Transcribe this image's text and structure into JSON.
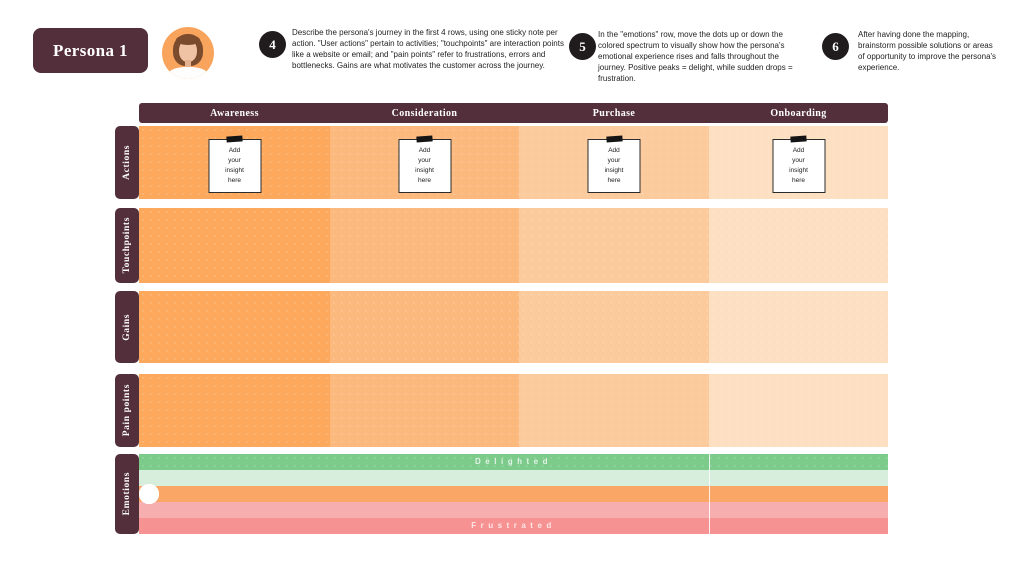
{
  "persona": {
    "name": "Persona 1"
  },
  "steps": [
    {
      "number": "4",
      "text": "Describe the persona's journey in the first 4 rows, using one sticky note per action. \"User actions\" pertain to activities; \"touchpoints\" are interaction points like a website or email; and \"pain points\" refer to frustrations, errors and bottlenecks. Gains are what motivates the customer across the journey."
    },
    {
      "number": "5",
      "text": "In the \"emotions\" row, move the dots up or down the colored spectrum to visually show how the persona's emotional experience rises and falls throughout the journey. Positive peaks = delight, while sudden drops = frustration."
    },
    {
      "number": "6",
      "text": "After having done the mapping, brainstorm possible solutions or areas of opportunity to improve the persona's experience."
    }
  ],
  "board": {
    "columns": [
      {
        "label": "Awareness",
        "color": "#FCA95D"
      },
      {
        "label": "Consideration",
        "color": "#FBB97E"
      },
      {
        "label": "Purchase",
        "color": "#FCCB9D"
      },
      {
        "label": "Onboarding",
        "color": "#FDDFC2"
      }
    ],
    "rows": [
      {
        "label": "Actions"
      },
      {
        "label": "Touchpoints"
      },
      {
        "label": "Gains"
      },
      {
        "label": "Pain points"
      },
      {
        "label": "Emotions"
      }
    ],
    "sticky_note_text": "Add\nyour\ninsight\nhere",
    "emotions": {
      "delighted_label": "Delighted",
      "frustrated_label": "Frustrated",
      "band_colors": [
        "#7CCB8B",
        "#D6EEDB",
        "#FAA667",
        "#F6AEAE",
        "#F79292"
      ],
      "dot_levels": [
        "neutral",
        "neutral",
        "neutral",
        "neutral"
      ]
    }
  },
  "theme": {
    "maroon": "#522F3A",
    "badge_black": "#201C1D",
    "avatar_orange": "#F9A45C",
    "background": "#FFFFFF"
  }
}
